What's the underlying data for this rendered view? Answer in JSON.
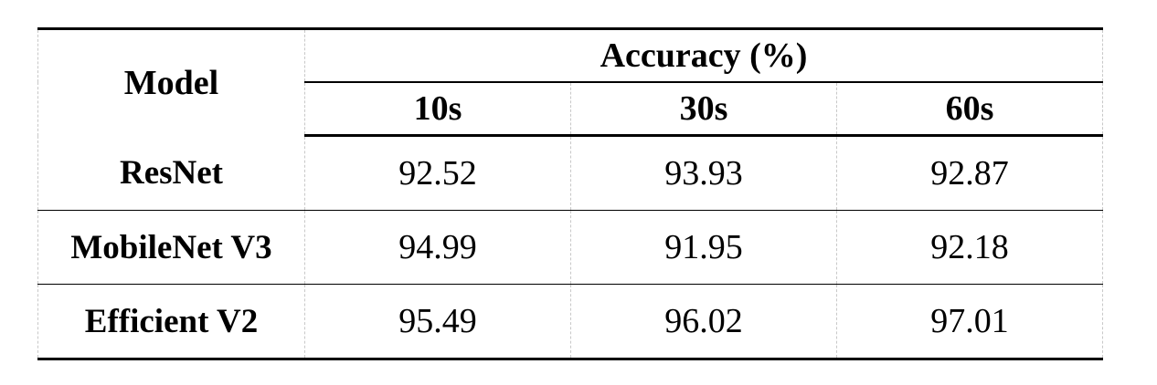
{
  "table": {
    "model_header": "Model",
    "group_header": "Accuracy (%)",
    "sub_headers": [
      "10s",
      "30s",
      "60s"
    ],
    "rows": [
      {
        "model": "ResNet",
        "values": [
          "92.52",
          "93.93",
          "92.87"
        ]
      },
      {
        "model": "MobileNet V3",
        "values": [
          "94.99",
          "91.95",
          "92.18"
        ]
      },
      {
        "model": "Efficient V2",
        "values": [
          "95.49",
          "96.02",
          "97.01"
        ]
      }
    ]
  }
}
